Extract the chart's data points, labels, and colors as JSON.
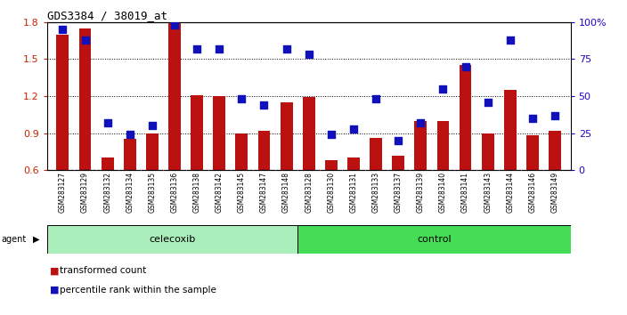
{
  "title": "GDS3384 / 38019_at",
  "samples": [
    "GSM283127",
    "GSM283129",
    "GSM283132",
    "GSM283134",
    "GSM283135",
    "GSM283136",
    "GSM283138",
    "GSM283142",
    "GSM283145",
    "GSM283147",
    "GSM283148",
    "GSM283128",
    "GSM283130",
    "GSM283131",
    "GSM283133",
    "GSM283137",
    "GSM283139",
    "GSM283140",
    "GSM283141",
    "GSM283143",
    "GSM283144",
    "GSM283146",
    "GSM283149"
  ],
  "transformed_count": [
    1.7,
    1.75,
    0.7,
    0.85,
    0.9,
    1.8,
    1.21,
    1.2,
    0.9,
    0.92,
    1.15,
    1.19,
    0.68,
    0.7,
    0.86,
    0.72,
    1.0,
    1.0,
    1.45,
    0.9,
    1.25,
    0.88,
    0.92
  ],
  "percentile_rank": [
    95,
    88,
    32,
    24,
    30,
    98,
    82,
    82,
    48,
    44,
    82,
    78,
    24,
    28,
    48,
    20,
    32,
    55,
    70,
    46,
    88,
    35,
    37
  ],
  "celecoxib_count": 11,
  "control_count": 12,
  "ylim_left": [
    0.6,
    1.8
  ],
  "ylim_right": [
    0,
    100
  ],
  "yticks_left": [
    0.6,
    0.9,
    1.2,
    1.5,
    1.8
  ],
  "yticks_right": [
    0,
    25,
    50,
    75,
    100
  ],
  "bar_color": "#bb1111",
  "dot_color": "#1111bb",
  "celecoxib_color": "#aaeebb",
  "control_color": "#44dd55",
  "background_color": "#ffffff",
  "tick_label_color_left": "#cc2200",
  "tick_label_color_right": "#2200cc",
  "bar_width": 0.55,
  "dot_size": 35,
  "xticklabel_bg": "#cccccc"
}
